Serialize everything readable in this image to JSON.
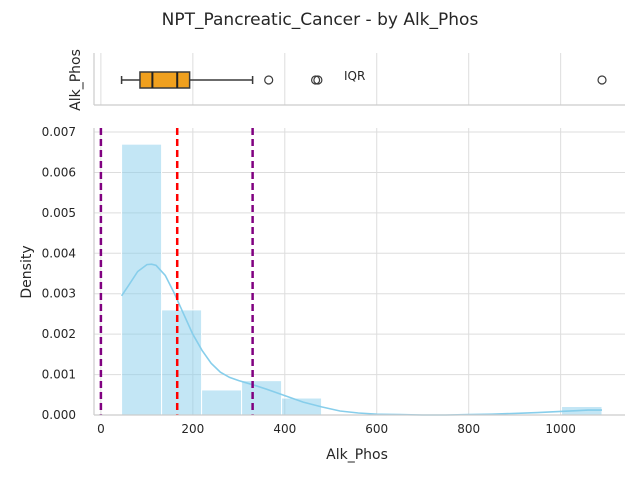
{
  "chart_data": {
    "type": "histogram",
    "title": "NPT_Pancreatic_Cancer - by Alk_Phos",
    "boxplot": {
      "ylabel": "Alk_Phos",
      "whisker_low": 45,
      "q1": 85,
      "median": 112,
      "q3": 193,
      "whisker_high": 330,
      "mean": 166,
      "outliers": [
        365,
        467,
        472,
        1090
      ],
      "annotation": "IQR",
      "box_color": "#f0a01e"
    },
    "histogram": {
      "xlabel": "Alk_Phos",
      "ylabel": "Density",
      "xlim": [
        -15,
        1140
      ],
      "ylim": [
        0,
        0.0071
      ],
      "xticks": [
        0,
        200,
        400,
        600,
        800,
        1000
      ],
      "yticks": [
        0.0,
        0.001,
        0.002,
        0.003,
        0.004,
        0.005,
        0.006,
        0.007
      ],
      "ytick_labels": [
        "0.000",
        "0.001",
        "0.002",
        "0.003",
        "0.004",
        "0.005",
        "0.006",
        "0.007"
      ],
      "bins": [
        {
          "x0": 45,
          "x1": 132,
          "density": 0.0067
        },
        {
          "x0": 132,
          "x1": 219,
          "density": 0.0026
        },
        {
          "x0": 219,
          "x1": 306,
          "density": 0.00062
        },
        {
          "x0": 306,
          "x1": 393,
          "density": 0.00085
        },
        {
          "x0": 393,
          "x1": 480,
          "density": 0.00042
        },
        {
          "x0": 480,
          "x1": 567,
          "density": 0
        },
        {
          "x0": 567,
          "x1": 654,
          "density": 0
        },
        {
          "x0": 654,
          "x1": 741,
          "density": 0
        },
        {
          "x0": 741,
          "x1": 828,
          "density": 0
        },
        {
          "x0": 828,
          "x1": 915,
          "density": 0
        },
        {
          "x0": 915,
          "x1": 1002,
          "density": 0
        },
        {
          "x0": 1002,
          "x1": 1090,
          "density": 0.00021
        }
      ],
      "kde": {
        "x": [
          45,
          60,
          80,
          100,
          110,
          120,
          140,
          160,
          180,
          200,
          220,
          240,
          260,
          280,
          300,
          330,
          360,
          400,
          440,
          480,
          520,
          560,
          600,
          650,
          700,
          750,
          800,
          850,
          900,
          950,
          1000,
          1040,
          1060,
          1090
        ],
        "y": [
          0.00295,
          0.0032,
          0.00355,
          0.00372,
          0.00373,
          0.0037,
          0.00345,
          0.003,
          0.0025,
          0.002,
          0.0016,
          0.00128,
          0.00106,
          0.00093,
          0.00085,
          0.00075,
          0.00064,
          0.00048,
          0.00032,
          0.0002,
          0.0001,
          5e-05,
          2e-05,
          1e-05,
          0.0,
          0.0,
          1e-05,
          2e-05,
          4e-05,
          6e-05,
          9e-05,
          0.00011,
          0.00012,
          0.00012
        ]
      },
      "vlines": [
        {
          "x": 0,
          "color": "#800080",
          "style": "dashed"
        },
        {
          "x": 166,
          "color": "#ff0000",
          "style": "dashed"
        },
        {
          "x": 330,
          "color": "#800080",
          "style": "dashed"
        }
      ],
      "bar_color": "#87ceeb",
      "kde_color": "#87ceeb",
      "grid": true
    }
  }
}
